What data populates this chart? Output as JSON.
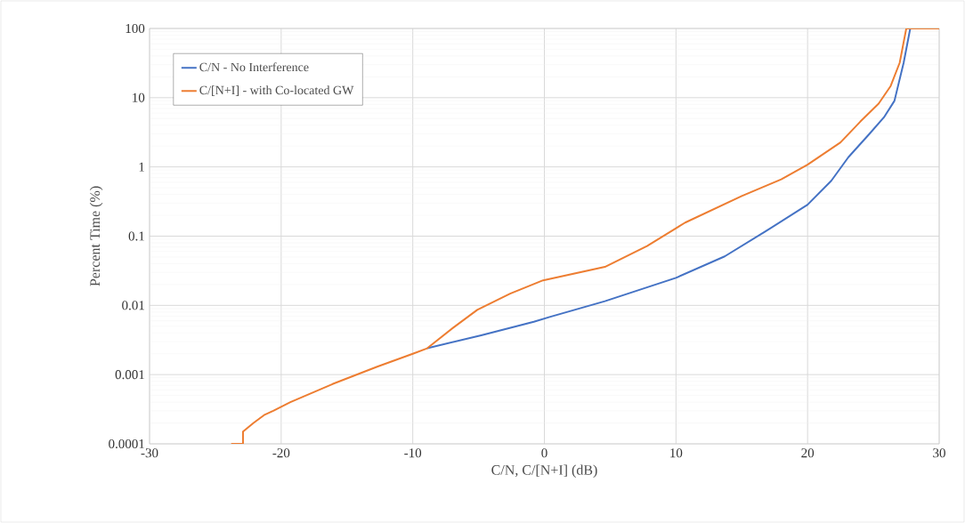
{
  "chart_data": {
    "type": "line",
    "xlabel": "C/N, C/[N+I] (dB)",
    "ylabel": "Percent Time (%)",
    "xlim": [
      -30,
      30
    ],
    "xticks": [
      -30,
      -20,
      -10,
      0,
      10,
      20,
      30
    ],
    "ylim": [
      0.0001,
      100
    ],
    "yticks": [
      0.0001,
      0.001,
      0.01,
      0.1,
      1,
      10,
      100
    ],
    "log": "y",
    "grid": true,
    "legend": "top left",
    "marker": "none",
    "line_style": "solid",
    "series": [
      {
        "name": "C/N - No Interference",
        "color": "#4472c4",
        "x": [
          -8.9,
          -4.8,
          -0.8,
          0.4,
          4.6,
          10,
          13.7,
          16.8,
          20,
          21.8,
          23.1,
          24.7,
          25.8,
          26.6,
          27.3,
          27.8
        ],
        "values": [
          0.0024,
          0.0037,
          0.0058,
          0.0068,
          0.0115,
          0.025,
          0.051,
          0.117,
          0.285,
          0.63,
          1.38,
          3.0,
          5.2,
          9.0,
          32,
          100
        ]
      },
      {
        "name": "C/[N+I] - with Co-located GW",
        "color": "#ed7d31",
        "x": [
          -23.8,
          -22.9,
          -22.9,
          -22.1,
          -21.3,
          -20.6,
          -19.3,
          -16.1,
          -12.7,
          -10,
          -8.9,
          -6.9,
          -5.1,
          -2.6,
          -0.1,
          4.6,
          7.8,
          10.7,
          15,
          18,
          20,
          22.5,
          24,
          25.4,
          26.3,
          27,
          27.5,
          30
        ],
        "values": [
          0.0001,
          0.0001,
          0.00015,
          0.0002,
          0.00026,
          0.0003,
          0.0004,
          0.00073,
          0.0013,
          0.002,
          0.0024,
          0.0048,
          0.0086,
          0.0148,
          0.023,
          0.036,
          0.072,
          0.157,
          0.38,
          0.66,
          1.08,
          2.26,
          4.5,
          8.2,
          14.6,
          32,
          100,
          100
        ]
      }
    ]
  }
}
